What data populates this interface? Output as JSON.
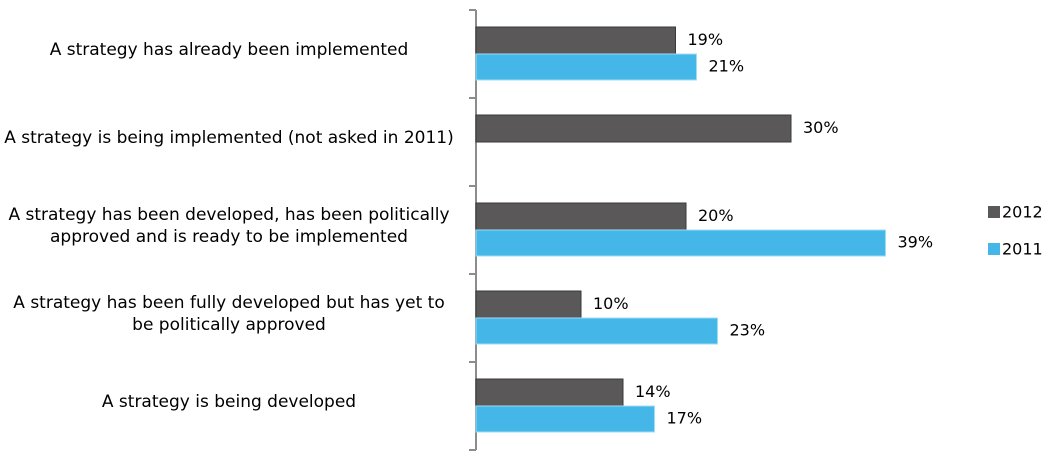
{
  "chart_data": {
    "type": "hbar",
    "categories": [
      "A strategy  has already been implemented",
      "A strategy  is being implemented  (not asked in 2011)",
      "A strategy  has been developed, has been politically approved and is ready to be implemented",
      "A strategy  has been fully developed  but has yet to be politically  approved",
      "A strategy  is being developed"
    ],
    "series": [
      {
        "name": "2012",
        "color": "#5a5859",
        "values": [
          19,
          30,
          20,
          10,
          14
        ],
        "value_labels": [
          "19%",
          "30%",
          "20%",
          "10%",
          "14%"
        ]
      },
      {
        "name": "2011",
        "color": "#45b6e8",
        "values": [
          21,
          null,
          39,
          23,
          17
        ],
        "value_labels": [
          "21%",
          null,
          "39%",
          "23%",
          "17%"
        ]
      }
    ],
    "xlim": [
      0,
      40
    ]
  }
}
